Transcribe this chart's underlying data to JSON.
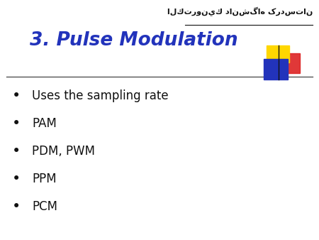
{
  "title": "3. Pulse Modulation",
  "title_color": "#2233BB",
  "title_fontsize": 19,
  "bullet_items": [
    "Uses the sampling rate",
    "PAM",
    "PDM, PWM",
    "PPM",
    "PCM"
  ],
  "bullet_fontsize": 12,
  "bullet_color": "#111111",
  "bg_color": "#ffffff",
  "arabic_text": "الكترونيك دانشگاه کردستان",
  "arabic_fontsize": 8,
  "logo_colors": {
    "yellow": "#FFD700",
    "red": "#DD2222",
    "blue": "#2233BB",
    "dark": "#111111"
  }
}
